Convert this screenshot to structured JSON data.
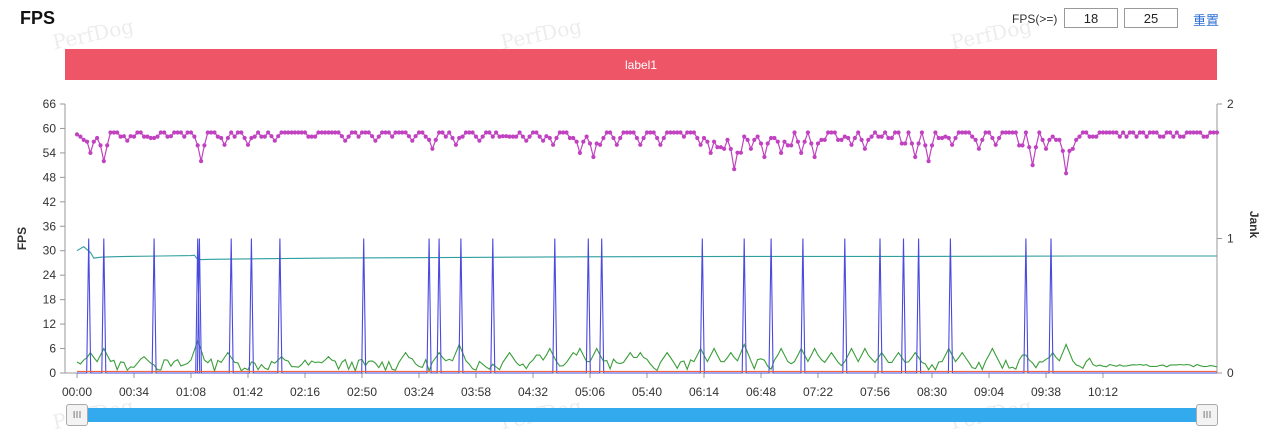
{
  "header": {
    "title": "FPS",
    "threshold_label": "FPS(>=)",
    "threshold_low": "18",
    "threshold_high": "25",
    "reset_label": "重置"
  },
  "watermark": "PerfDog",
  "label_bar": {
    "text": "label1",
    "color": "#ee5566"
  },
  "slider": {
    "start_icon": "III",
    "end_icon": "III",
    "track_color": "#33aaee"
  },
  "chart_data": {
    "type": "line",
    "title": "",
    "xlabel": "",
    "ylabel": "FPS",
    "y2label": "Jank",
    "ylim": [
      0,
      66
    ],
    "y2lim": [
      0,
      2
    ],
    "yticks": [
      0,
      6,
      12,
      18,
      24,
      30,
      36,
      42,
      48,
      54,
      60,
      66
    ],
    "y2ticks": [
      0,
      1,
      2
    ],
    "xlim": [
      0,
      680
    ],
    "xtick_seconds": [
      0,
      34,
      68,
      102,
      136,
      170,
      204,
      238,
      272,
      306,
      340,
      374,
      408,
      442,
      476,
      510,
      544,
      578,
      612
    ],
    "xtick_labels": [
      "00:00",
      "00:34",
      "01:08",
      "01:42",
      "02:16",
      "02:50",
      "03:24",
      "03:58",
      "04:32",
      "05:06",
      "05:40",
      "06:14",
      "06:48",
      "07:22",
      "07:56",
      "08:30",
      "09:04",
      "09:38",
      "10:12"
    ],
    "grid": false,
    "series": [
      {
        "color": "#c042c0",
        "markers": true,
        "axis": "left",
        "base": 59,
        "dips": [
          [
            2,
            58
          ],
          [
            5,
            55
          ],
          [
            8,
            54
          ],
          [
            11,
            56
          ],
          [
            16,
            52
          ],
          [
            30,
            57
          ],
          [
            45,
            56
          ],
          [
            55,
            57
          ],
          [
            72,
            57
          ],
          [
            74,
            52
          ],
          [
            88,
            56
          ],
          [
            102,
            56
          ],
          [
            118,
            57
          ],
          [
            140,
            58
          ],
          [
            160,
            57
          ],
          [
            178,
            57
          ],
          [
            200,
            57
          ],
          [
            212,
            55
          ],
          [
            226,
            56
          ],
          [
            240,
            57
          ],
          [
            255,
            57
          ],
          [
            268,
            57
          ],
          [
            278,
            57
          ],
          [
            284,
            56
          ],
          [
            295,
            56
          ],
          [
            300,
            54
          ],
          [
            308,
            53
          ],
          [
            312,
            56
          ],
          [
            322,
            56
          ],
          [
            336,
            56
          ],
          [
            348,
            56
          ],
          [
            372,
            56
          ],
          [
            378,
            54
          ],
          [
            383,
            51
          ],
          [
            386,
            55
          ],
          [
            392,
            50
          ],
          [
            395,
            48
          ],
          [
            402,
            55
          ],
          [
            410,
            53
          ],
          [
            415,
            56
          ],
          [
            420,
            54
          ],
          [
            425,
            52
          ],
          [
            432,
            54
          ],
          [
            440,
            53
          ],
          [
            445,
            55
          ],
          [
            455,
            55
          ],
          [
            462,
            56
          ],
          [
            470,
            55
          ],
          [
            485,
            56
          ],
          [
            493,
            53
          ],
          [
            500,
            53
          ],
          [
            508,
            52
          ],
          [
            515,
            56
          ],
          [
            522,
            56
          ],
          [
            538,
            55
          ],
          [
            548,
            56
          ],
          [
            563,
            52
          ],
          [
            570,
            51
          ],
          [
            578,
            55
          ],
          [
            585,
            55
          ],
          [
            590,
            49
          ],
          [
            594,
            55
          ]
        ]
      },
      {
        "color": "#2e9e9e",
        "markers": false,
        "axis": "left",
        "points": [
          [
            0,
            30
          ],
          [
            4,
            31
          ],
          [
            8,
            29.6
          ],
          [
            10,
            28.2
          ],
          [
            14,
            28.4
          ],
          [
            20,
            28.5
          ],
          [
            30,
            28.6
          ],
          [
            50,
            28.7
          ],
          [
            68,
            28.8
          ],
          [
            70,
            28.9
          ],
          [
            72,
            27.8
          ],
          [
            80,
            27.9
          ],
          [
            100,
            28.0
          ],
          [
            150,
            28.2
          ],
          [
            200,
            28.3
          ],
          [
            300,
            28.5
          ],
          [
            400,
            28.6
          ],
          [
            500,
            28.6
          ],
          [
            600,
            28.7
          ],
          [
            680,
            28.7
          ]
        ]
      },
      {
        "color": "#3a9e3a",
        "markers": false,
        "axis": "left",
        "base": 2,
        "amplitude": 1.5,
        "bumps": [
          [
            8,
            5
          ],
          [
            16,
            6
          ],
          [
            40,
            4
          ],
          [
            72,
            8
          ],
          [
            90,
            5
          ],
          [
            122,
            4
          ],
          [
            150,
            4
          ],
          [
            196,
            5
          ],
          [
            216,
            5
          ],
          [
            228,
            7
          ],
          [
            258,
            5
          ],
          [
            275,
            5
          ],
          [
            282,
            6
          ],
          [
            296,
            5
          ],
          [
            300,
            6
          ],
          [
            310,
            6
          ],
          [
            330,
            5
          ],
          [
            336,
            5
          ],
          [
            352,
            5
          ],
          [
            372,
            6
          ],
          [
            380,
            6
          ],
          [
            390,
            5
          ],
          [
            398,
            7
          ],
          [
            420,
            6
          ],
          [
            432,
            6
          ],
          [
            440,
            6
          ],
          [
            450,
            5
          ],
          [
            462,
            6
          ],
          [
            470,
            6
          ],
          [
            480,
            5
          ],
          [
            490,
            5
          ],
          [
            500,
            5
          ],
          [
            520,
            6
          ],
          [
            528,
            5
          ],
          [
            546,
            6
          ],
          [
            565,
            5
          ],
          [
            582,
            5
          ],
          [
            590,
            7
          ],
          [
            605,
            4
          ]
        ]
      },
      {
        "color": "#4a4adf",
        "markers": false,
        "axis": "right",
        "spikes": [
          7,
          16,
          46,
          72,
          73,
          92,
          104,
          121,
          171,
          210,
          216,
          229,
          248,
          285,
          305,
          313,
          373,
          398,
          414,
          433,
          458,
          479,
          493,
          502,
          521,
          566,
          581
        ]
      },
      {
        "color": "#ee6644",
        "markers": false,
        "axis": "right",
        "points": [
          [
            0,
            0.012
          ],
          [
            680,
            0.012
          ]
        ]
      }
    ]
  }
}
